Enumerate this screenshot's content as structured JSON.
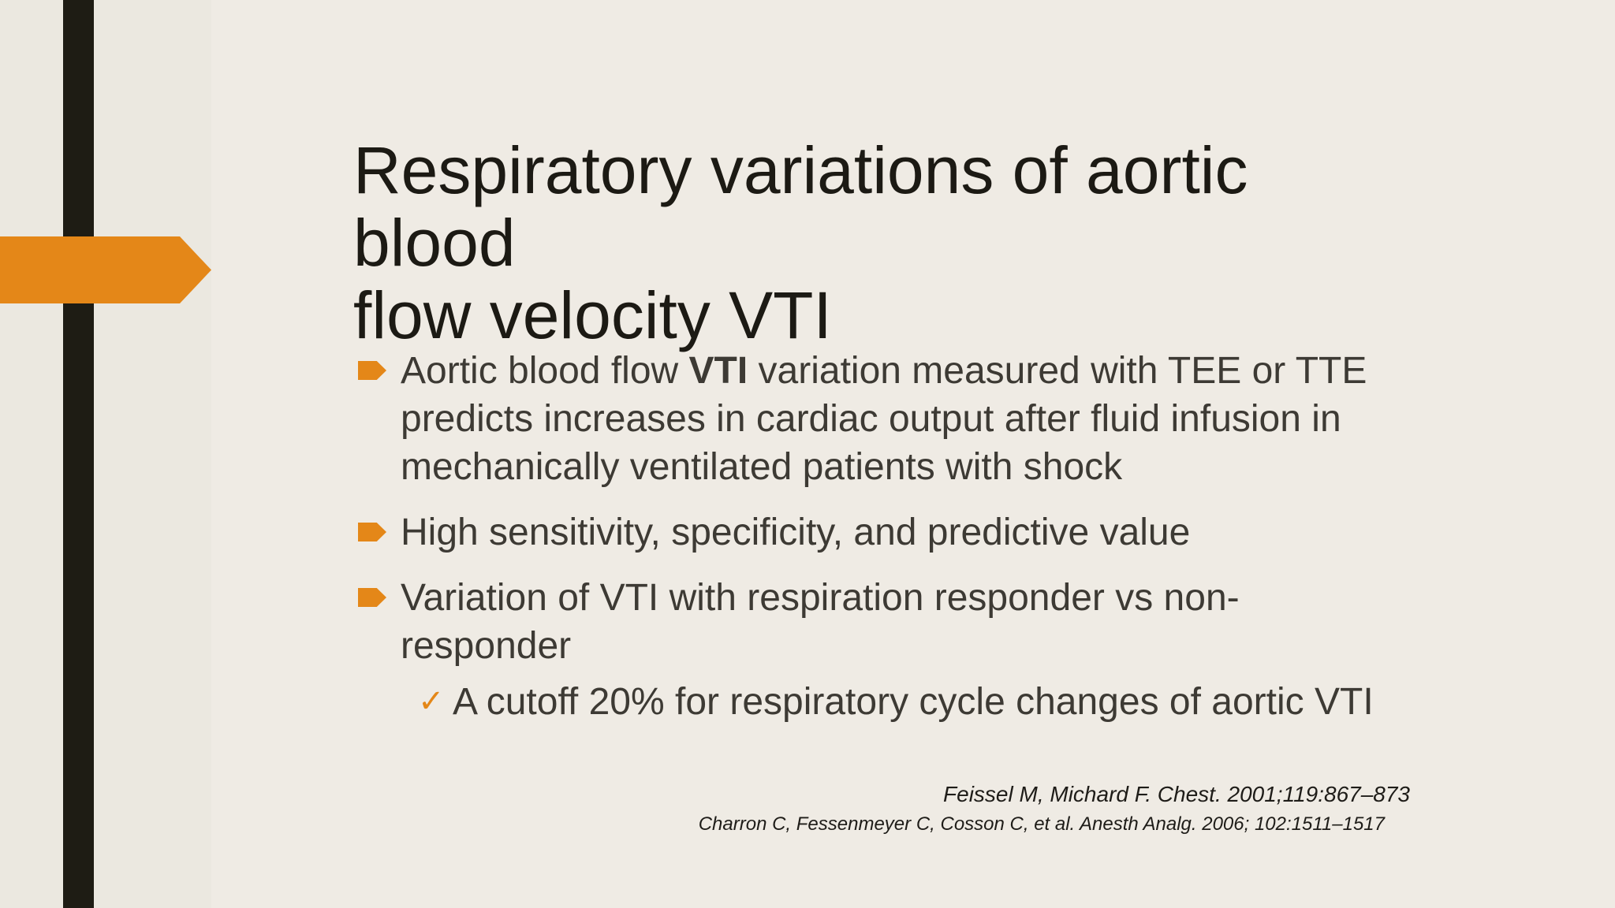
{
  "slide": {
    "title": "Respiratory variations of aortic\nblood\nflow velocity VTI",
    "bullets": [
      {
        "pre": "Aortic blood flow ",
        "bold": "VTI",
        "post": " variation measured with TEE or TTE predicts increases in cardiac output after fluid infusion in mechanically ventilated patients with  shock"
      },
      {
        "text": "High sensitivity, specificity, and predictive value"
      },
      {
        "text": "Variation of VTI with respiration responder vs non-responder"
      }
    ],
    "sub_bullet": "A cutoff 20% for respiratory cycle changes of aortic VTI",
    "references": [
      "Feissel M, Michard F. Chest. 2001;119:867–873",
      "Charron C, Fessenmeyer C, Cosson C, et al. Anesth Analg. 2006; 102:1511–1517"
    ]
  },
  "colors": {
    "background": "#efebe4",
    "accent": "#e48718",
    "dark_bar": "#1e1c14",
    "body_text": "#3d3a34"
  },
  "icons": {
    "bullet": "arrow-bullet-icon",
    "sub_bullet": "checkmark-icon"
  }
}
